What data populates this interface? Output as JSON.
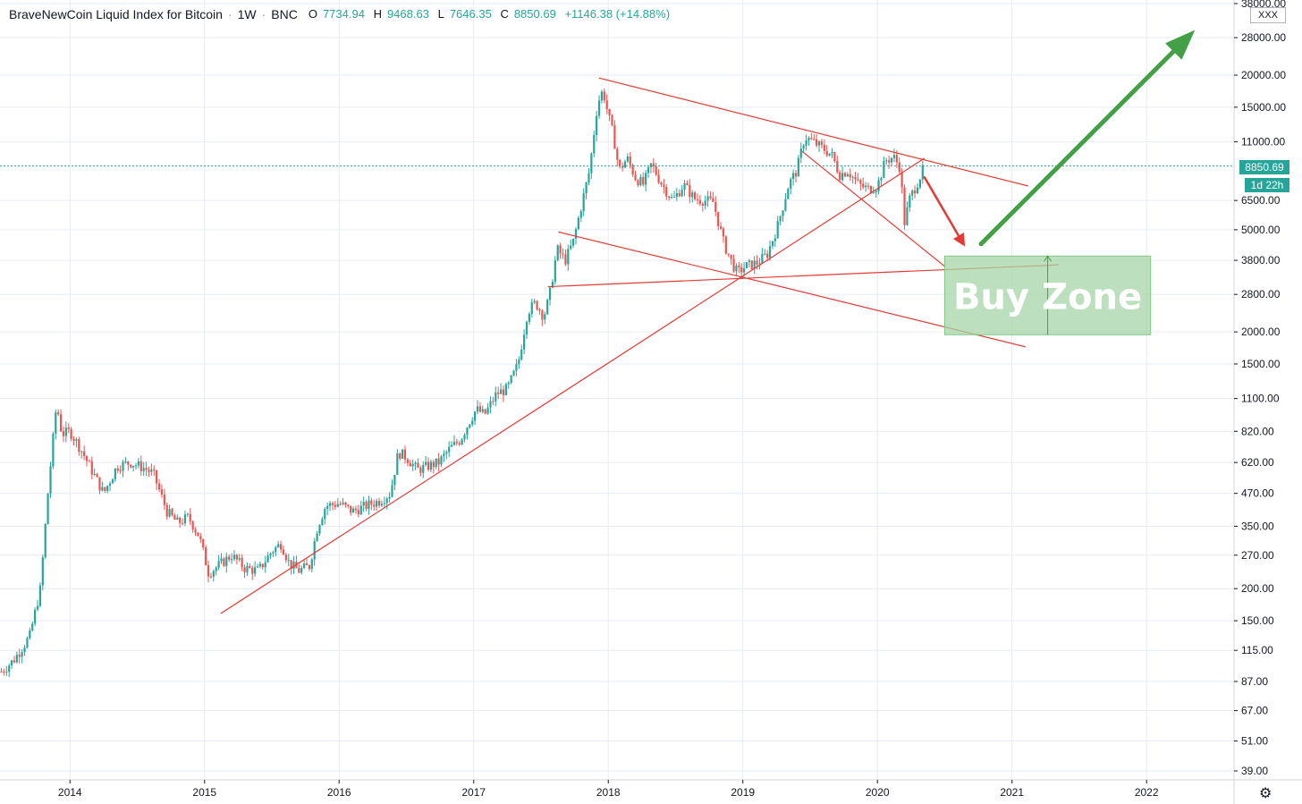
{
  "header": {
    "title": "BraveNewCoin Liquid Index for Bitcoin",
    "interval": "1W",
    "exchange": "BNC",
    "ohlc": {
      "o_label": "O",
      "o": "7734.94",
      "h_label": "H",
      "h": "9468.63",
      "l_label": "L",
      "l": "7646.35",
      "c_label": "C",
      "c": "8850.69",
      "change": "+1146.38 (+14.88%)"
    }
  },
  "badge": "XXX",
  "price_tag": "8850.69",
  "countdown_tag": "1d 22h",
  "colors": {
    "up": "#26a69a",
    "down": "#ef5350",
    "trendline": "#e53935",
    "zone": "#a5d6a7",
    "arrow_up": "#43a047",
    "arrow_down": "#e53935"
  },
  "icons": {
    "settings": "gear-icon"
  },
  "chart_data": {
    "type": "candlestick",
    "scale": "log",
    "y_ticks": [
      "38000.00",
      "28000.00",
      "20000.00",
      "15000.00",
      "11000.00",
      "8850.69",
      "6500.00",
      "5000.00",
      "3800.00",
      "2800.00",
      "2000.00",
      "1500.00",
      "1100.00",
      "820.00",
      "620.00",
      "470.00",
      "350.00",
      "270.00",
      "200.00",
      "150.00",
      "115.00",
      "87.00",
      "67.00",
      "51.00",
      "39.00"
    ],
    "x_ticks": [
      "2014",
      "2015",
      "2016",
      "2017",
      "2018",
      "2019",
      "2020",
      "2021",
      "2022"
    ],
    "ylim": [
      36,
      38000
    ],
    "xlim": [
      2013.48,
      2022.65
    ],
    "last_price": 8850.69,
    "path": [
      [
        2013.49,
        95
      ],
      [
        2013.58,
        105
      ],
      [
        2013.7,
        130
      ],
      [
        2013.78,
        200
      ],
      [
        2013.84,
        500
      ],
      [
        2013.9,
        1050
      ],
      [
        2013.94,
        800
      ],
      [
        2014.0,
        820
      ],
      [
        2014.08,
        700
      ],
      [
        2014.16,
        580
      ],
      [
        2014.25,
        470
      ],
      [
        2014.35,
        600
      ],
      [
        2014.45,
        620
      ],
      [
        2014.55,
        590
      ],
      [
        2014.62,
        560
      ],
      [
        2014.72,
        400
      ],
      [
        2014.8,
        360
      ],
      [
        2014.88,
        380
      ],
      [
        2014.96,
        320
      ],
      [
        2015.03,
        230
      ],
      [
        2015.1,
        245
      ],
      [
        2015.2,
        270
      ],
      [
        2015.3,
        240
      ],
      [
        2015.4,
        235
      ],
      [
        2015.5,
        280
      ],
      [
        2015.57,
        300
      ],
      [
        2015.63,
        250
      ],
      [
        2015.7,
        235
      ],
      [
        2015.78,
        245
      ],
      [
        2015.84,
        350
      ],
      [
        2015.9,
        420
      ],
      [
        2016.0,
        430
      ],
      [
        2016.1,
        400
      ],
      [
        2016.2,
        420
      ],
      [
        2016.3,
        440
      ],
      [
        2016.38,
        470
      ],
      [
        2016.44,
        680
      ],
      [
        2016.5,
        650
      ],
      [
        2016.58,
        580
      ],
      [
        2016.66,
        600
      ],
      [
        2016.74,
        620
      ],
      [
        2016.82,
        700
      ],
      [
        2016.9,
        760
      ],
      [
        2016.97,
        900
      ],
      [
        2017.02,
        1000
      ],
      [
        2017.08,
        950
      ],
      [
        2017.17,
        1150
      ],
      [
        2017.25,
        1200
      ],
      [
        2017.33,
        1500
      ],
      [
        2017.4,
        2400
      ],
      [
        2017.46,
        2600
      ],
      [
        2017.52,
        2300
      ],
      [
        2017.56,
        2700
      ],
      [
        2017.62,
        4200
      ],
      [
        2017.68,
        3800
      ],
      [
        2017.74,
        4500
      ],
      [
        2017.8,
        6200
      ],
      [
        2017.86,
        8500
      ],
      [
        2017.92,
        15500
      ],
      [
        2017.96,
        17500
      ],
      [
        2018.0,
        14000
      ],
      [
        2018.04,
        11500
      ],
      [
        2018.08,
        8500
      ],
      [
        2018.14,
        9500
      ],
      [
        2018.2,
        8000
      ],
      [
        2018.26,
        7500
      ],
      [
        2018.32,
        9000
      ],
      [
        2018.4,
        7500
      ],
      [
        2018.48,
        6500
      ],
      [
        2018.56,
        7500
      ],
      [
        2018.64,
        6600
      ],
      [
        2018.72,
        6500
      ],
      [
        2018.78,
        6400
      ],
      [
        2018.86,
        4400
      ],
      [
        2018.92,
        3700
      ],
      [
        2018.96,
        3400
      ],
      [
        2019.02,
        3600
      ],
      [
        2019.1,
        3700
      ],
      [
        2019.18,
        4000
      ],
      [
        2019.26,
        5200
      ],
      [
        2019.34,
        7500
      ],
      [
        2019.4,
        8500
      ],
      [
        2019.46,
        11500
      ],
      [
        2019.52,
        11000
      ],
      [
        2019.58,
        10500
      ],
      [
        2019.66,
        9800
      ],
      [
        2019.72,
        8200
      ],
      [
        2019.78,
        8500
      ],
      [
        2019.86,
        7500
      ],
      [
        2019.93,
        7200
      ],
      [
        2020.0,
        7400
      ],
      [
        2020.06,
        9300
      ],
      [
        2020.12,
        9600
      ],
      [
        2020.17,
        8700
      ],
      [
        2020.2,
        5300
      ],
      [
        2020.24,
        6600
      ],
      [
        2020.3,
        7700
      ],
      [
        2020.35,
        8850
      ]
    ],
    "trendlines": [
      {
        "points": [
          [
            2015.12,
            160
          ],
          [
            2018.94,
            3150
          ],
          [
            2020.35,
            9500
          ]
        ]
      },
      {
        "points": [
          [
            2017.93,
            19500
          ],
          [
            2021.12,
            7400
          ]
        ]
      },
      {
        "points": [
          [
            2017.63,
            4900
          ],
          [
            2021.1,
            1750
          ]
        ]
      },
      {
        "points": [
          [
            2017.55,
            3000
          ],
          [
            2021.35,
            3650
          ]
        ]
      },
      {
        "points": [
          [
            2019.44,
            10100
          ],
          [
            2020.5,
            3600
          ]
        ]
      }
    ],
    "annotations": [
      {
        "type": "rectangle",
        "label": "Buy Zone",
        "x1": 2020.5,
        "x2": 2022.03,
        "y1": 1950,
        "y2": 3950
      },
      {
        "type": "arrow",
        "color": "down",
        "from": [
          2020.35,
          8000
        ],
        "to": [
          2020.65,
          4300
        ]
      },
      {
        "type": "arrow",
        "color": "up",
        "from": [
          2020.77,
          4400
        ],
        "to": [
          2022.36,
          30000
        ]
      }
    ]
  }
}
